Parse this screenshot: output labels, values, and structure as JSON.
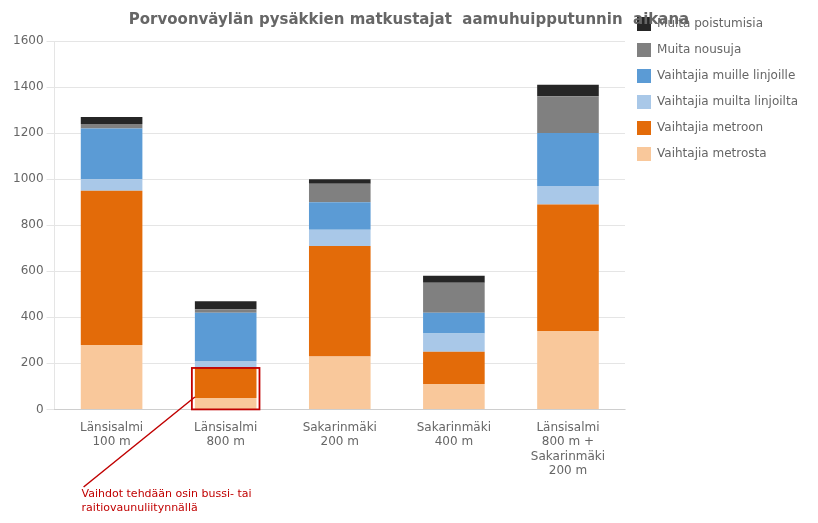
{
  "chart_data": {
    "type": "bar",
    "stacked": true,
    "title": "Porvoonväylän pysäkkien matkustajat  aamuhuipputunnin  aikana",
    "categories": [
      "Länsisalmi\n100 m",
      "Länsisalmi\n800 m",
      "Sakarinmäki\n200 m",
      "Sakarinmäki\n400 m",
      "Länsisalmi\n800 m +\nSakarinmäki\n200 m"
    ],
    "series": [
      {
        "name": "Vaihtajia metrosta",
        "color": "#f9c89b",
        "values": [
          280,
          50,
          230,
          110,
          340
        ]
      },
      {
        "name": "Vaihtajia metroon",
        "color": "#e36b09",
        "values": [
          670,
          130,
          480,
          140,
          550
        ]
      },
      {
        "name": "Vaihtajia muilta linjoilta",
        "color": "#a9c8e8",
        "values": [
          50,
          30,
          70,
          80,
          80
        ]
      },
      {
        "name": "Vaihtajia muille linjoille",
        "color": "#5b9bd5",
        "values": [
          220,
          210,
          120,
          90,
          230
        ]
      },
      {
        "name": "Muita nousuja",
        "color": "#808080",
        "values": [
          20,
          15,
          80,
          130,
          160
        ]
      },
      {
        "name": "Muita poistumisia",
        "color": "#262626",
        "values": [
          30,
          35,
          20,
          30,
          50
        ]
      }
    ],
    "ylim": [
      0,
      1600
    ],
    "yticks": [
      0,
      200,
      400,
      600,
      800,
      1000,
      1200,
      1400,
      1600
    ],
    "grid": true,
    "legend": "right",
    "annotation": {
      "text": "Vaihdot tehdään osin bussi- tai\nraitiovaunuliitynnällä",
      "color": "#c00000",
      "category": "Länsisalmi\n800 m",
      "series": [
        "Vaihtajia metrosta",
        "Vaihtajia metroon"
      ]
    }
  }
}
